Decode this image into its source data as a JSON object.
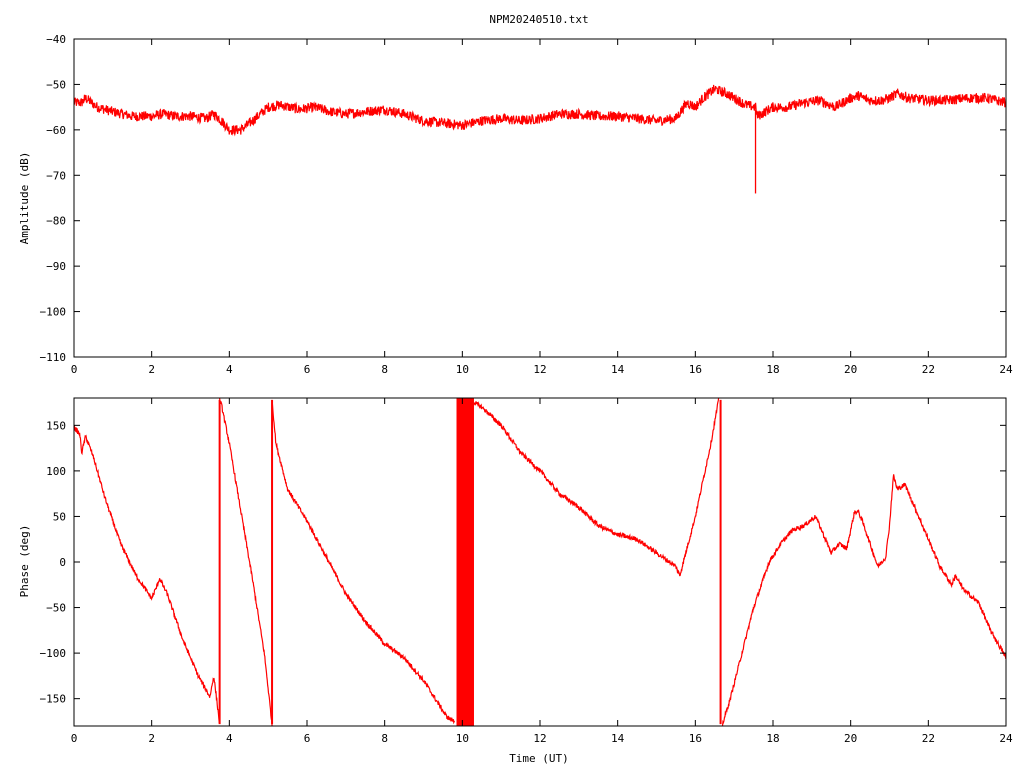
{
  "title": "NPM20240510.txt",
  "colors": {
    "series": "#ff0000",
    "axes": "#000000",
    "background": "#ffffff"
  },
  "chart_data": [
    {
      "type": "line",
      "ylabel": "Amplitude (dB)",
      "xlabel": "",
      "xlim": [
        0,
        24
      ],
      "ylim": [
        -110,
        -40
      ],
      "xticks": [
        0,
        2,
        4,
        6,
        8,
        10,
        12,
        14,
        16,
        18,
        20,
        22,
        24
      ],
      "yticks": [
        -110,
        -100,
        -90,
        -80,
        -70,
        -60,
        -50,
        -40
      ],
      "grid": false,
      "series": [
        {
          "color": "#ff0000",
          "noise": 1.1,
          "x": [
            0.0,
            0.2,
            0.3,
            0.6,
            1.0,
            1.5,
            2.0,
            2.3,
            2.6,
            3.0,
            3.4,
            3.6,
            3.8,
            4.0,
            4.3,
            4.6,
            5.0,
            5.3,
            5.8,
            6.2,
            6.6,
            7.0,
            7.5,
            8.0,
            8.5,
            9.0,
            9.5,
            10.0,
            10.5,
            11.0,
            11.5,
            12.0,
            12.5,
            13.0,
            13.5,
            14.0,
            14.5,
            15.0,
            15.5,
            15.7,
            15.8,
            16.0,
            16.2,
            16.5,
            16.8,
            17.0,
            17.3,
            17.55,
            17.6,
            17.8,
            18.0,
            18.4,
            18.8,
            19.2,
            19.6,
            20.0,
            20.2,
            20.5,
            20.8,
            21.0,
            21.2,
            21.5,
            22.0,
            22.5,
            23.0,
            23.5,
            24.0
          ],
          "y": [
            -54,
            -54,
            -53,
            -55,
            -56,
            -57,
            -57,
            -56.5,
            -57,
            -57,
            -57.5,
            -56.5,
            -58,
            -60,
            -60,
            -58,
            -55,
            -54.5,
            -55.5,
            -55,
            -56,
            -56.5,
            -56,
            -55.5,
            -56.5,
            -58,
            -58.5,
            -59,
            -58,
            -57.5,
            -58,
            -57.5,
            -56.5,
            -56.5,
            -57,
            -57,
            -57.5,
            -58,
            -57.5,
            -55,
            -54,
            -55,
            -53,
            -51,
            -52,
            -53,
            -54.5,
            -55,
            -57,
            -56,
            -55,
            -55,
            -54,
            -53.5,
            -55,
            -53,
            -52.5,
            -53.5,
            -53.5,
            -53,
            -52,
            -53,
            -53.5,
            -53.5,
            -53,
            -53,
            -54
          ]
        }
      ],
      "spikes": [
        {
          "x": 17.55,
          "y_from": -55.5,
          "y_to": -74
        }
      ]
    },
    {
      "type": "line",
      "ylabel": "Phase (deg)",
      "xlabel": "Time (UT)",
      "xlim": [
        0,
        24
      ],
      "ylim": [
        -180,
        180
      ],
      "xticks": [
        0,
        2,
        4,
        6,
        8,
        10,
        12,
        14,
        16,
        18,
        20,
        22,
        24
      ],
      "yticks": [
        -150,
        -100,
        -50,
        0,
        50,
        100,
        150
      ],
      "grid": false,
      "series": [
        {
          "color": "#ff0000",
          "noise": 2.5,
          "segments": [
            {
              "x": [
                0.0,
                0.15,
                0.2,
                0.3,
                0.5,
                0.8,
                1.2,
                1.6,
                2.0,
                2.15,
                2.2,
                2.4,
                2.8,
                3.2,
                3.5,
                3.6,
                3.7,
                3.75
              ],
              "y": [
                148,
                140,
                120,
                138,
                115,
                70,
                20,
                -15,
                -40,
                -25,
                -18,
                -35,
                -85,
                -125,
                -148,
                -125,
                -160,
                -178
              ]
            },
            {
              "x": [
                3.75,
                3.8,
                4.0,
                4.3,
                4.6,
                4.9,
                5.1
              ],
              "y": [
                178,
                172,
                130,
                55,
                -20,
                -100,
                -178
              ]
            },
            {
              "x": [
                5.1,
                5.2,
                5.5,
                6.0,
                6.5,
                7.0,
                7.5,
                8.0,
                8.5,
                9.0,
                9.3,
                9.6,
                9.8
              ],
              "y": [
                178,
                130,
                80,
                45,
                5,
                -35,
                -65,
                -90,
                -105,
                -130,
                -150,
                -170,
                -175
              ]
            },
            {
              "x": [
                10.3,
                10.5,
                11.0,
                11.5,
                12.0,
                12.5,
                13.0,
                13.5,
                14.0,
                14.5,
                15.0,
                15.5,
                15.6
              ],
              "y": [
                175,
                170,
                150,
                120,
                100,
                75,
                60,
                40,
                30,
                25,
                10,
                -5,
                -15
              ]
            },
            {
              "x": [
                15.6,
                16.0,
                16.4,
                16.6
              ],
              "y": [
                -15,
                50,
                130,
                178
              ]
            },
            {
              "x": [
                16.7,
                16.9,
                17.2,
                17.5,
                17.9,
                18.2,
                18.5,
                18.8,
                19.1,
                19.3,
                19.5,
                19.7,
                19.9,
                20.1,
                20.2,
                20.3,
                20.5,
                20.7,
                20.9,
                21.0,
                21.1,
                21.2,
                21.4,
                21.6,
                21.9,
                22.3,
                22.6,
                22.7,
                22.9,
                23.3,
                23.6,
                24.0
              ],
              "y": [
                -178,
                -150,
                -100,
                -50,
                0,
                20,
                35,
                40,
                50,
                30,
                10,
                20,
                15,
                55,
                55,
                45,
                20,
                -5,
                5,
                40,
                95,
                80,
                85,
                65,
                35,
                -5,
                -25,
                -15,
                -30,
                -45,
                -75,
                -105
              ]
            }
          ],
          "wraps": [
            {
              "x": 3.75,
              "y_from": -178,
              "y_to": 178
            },
            {
              "x": 5.1,
              "y_from": -178,
              "y_to": 178
            },
            {
              "x": 16.65,
              "y_from": 178,
              "y_to": -178
            }
          ],
          "bands": [
            {
              "x_from": 9.85,
              "x_to": 10.3,
              "y_from": -180,
              "y_to": 180
            }
          ]
        }
      ]
    }
  ]
}
